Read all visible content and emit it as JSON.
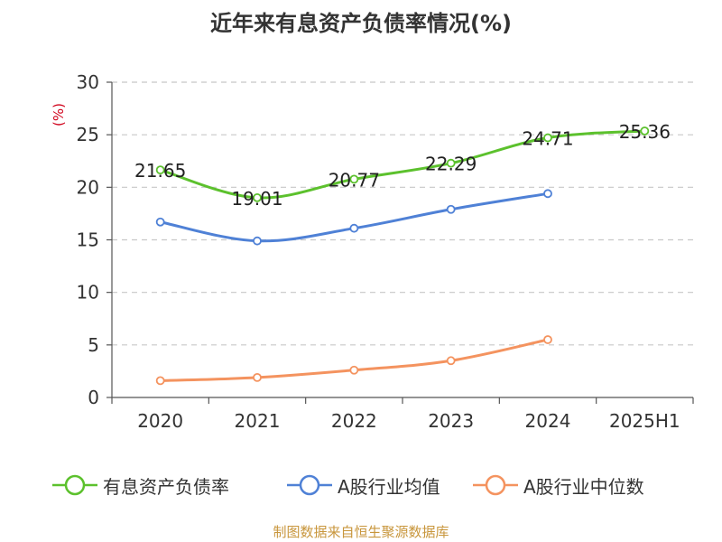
{
  "chart_data": {
    "type": "line",
    "title": "近年来有息资产负债率情况(%)",
    "ylabel": "(%)",
    "categories": [
      "2020",
      "2021",
      "2022",
      "2023",
      "2024",
      "2025H1"
    ],
    "ylim": [
      0,
      30
    ],
    "yticks": [
      0,
      5,
      10,
      15,
      20,
      25,
      30
    ],
    "grid": true,
    "legend_position": "bottom",
    "series": [
      {
        "name": "有息资产负债率",
        "color": "#5cc12d",
        "values": [
          21.65,
          19.01,
          20.77,
          22.29,
          24.71,
          25.36
        ],
        "labels": true
      },
      {
        "name": "A股行业均值",
        "color": "#4f81d6",
        "values": [
          16.7,
          14.9,
          16.1,
          17.9,
          19.4,
          null
        ],
        "labels": false
      },
      {
        "name": "A股行业中位数",
        "color": "#f4935f",
        "values": [
          1.6,
          1.9,
          2.6,
          3.5,
          5.5,
          null
        ],
        "labels": false
      }
    ]
  },
  "source": "制图数据来自恒生聚源数据库"
}
